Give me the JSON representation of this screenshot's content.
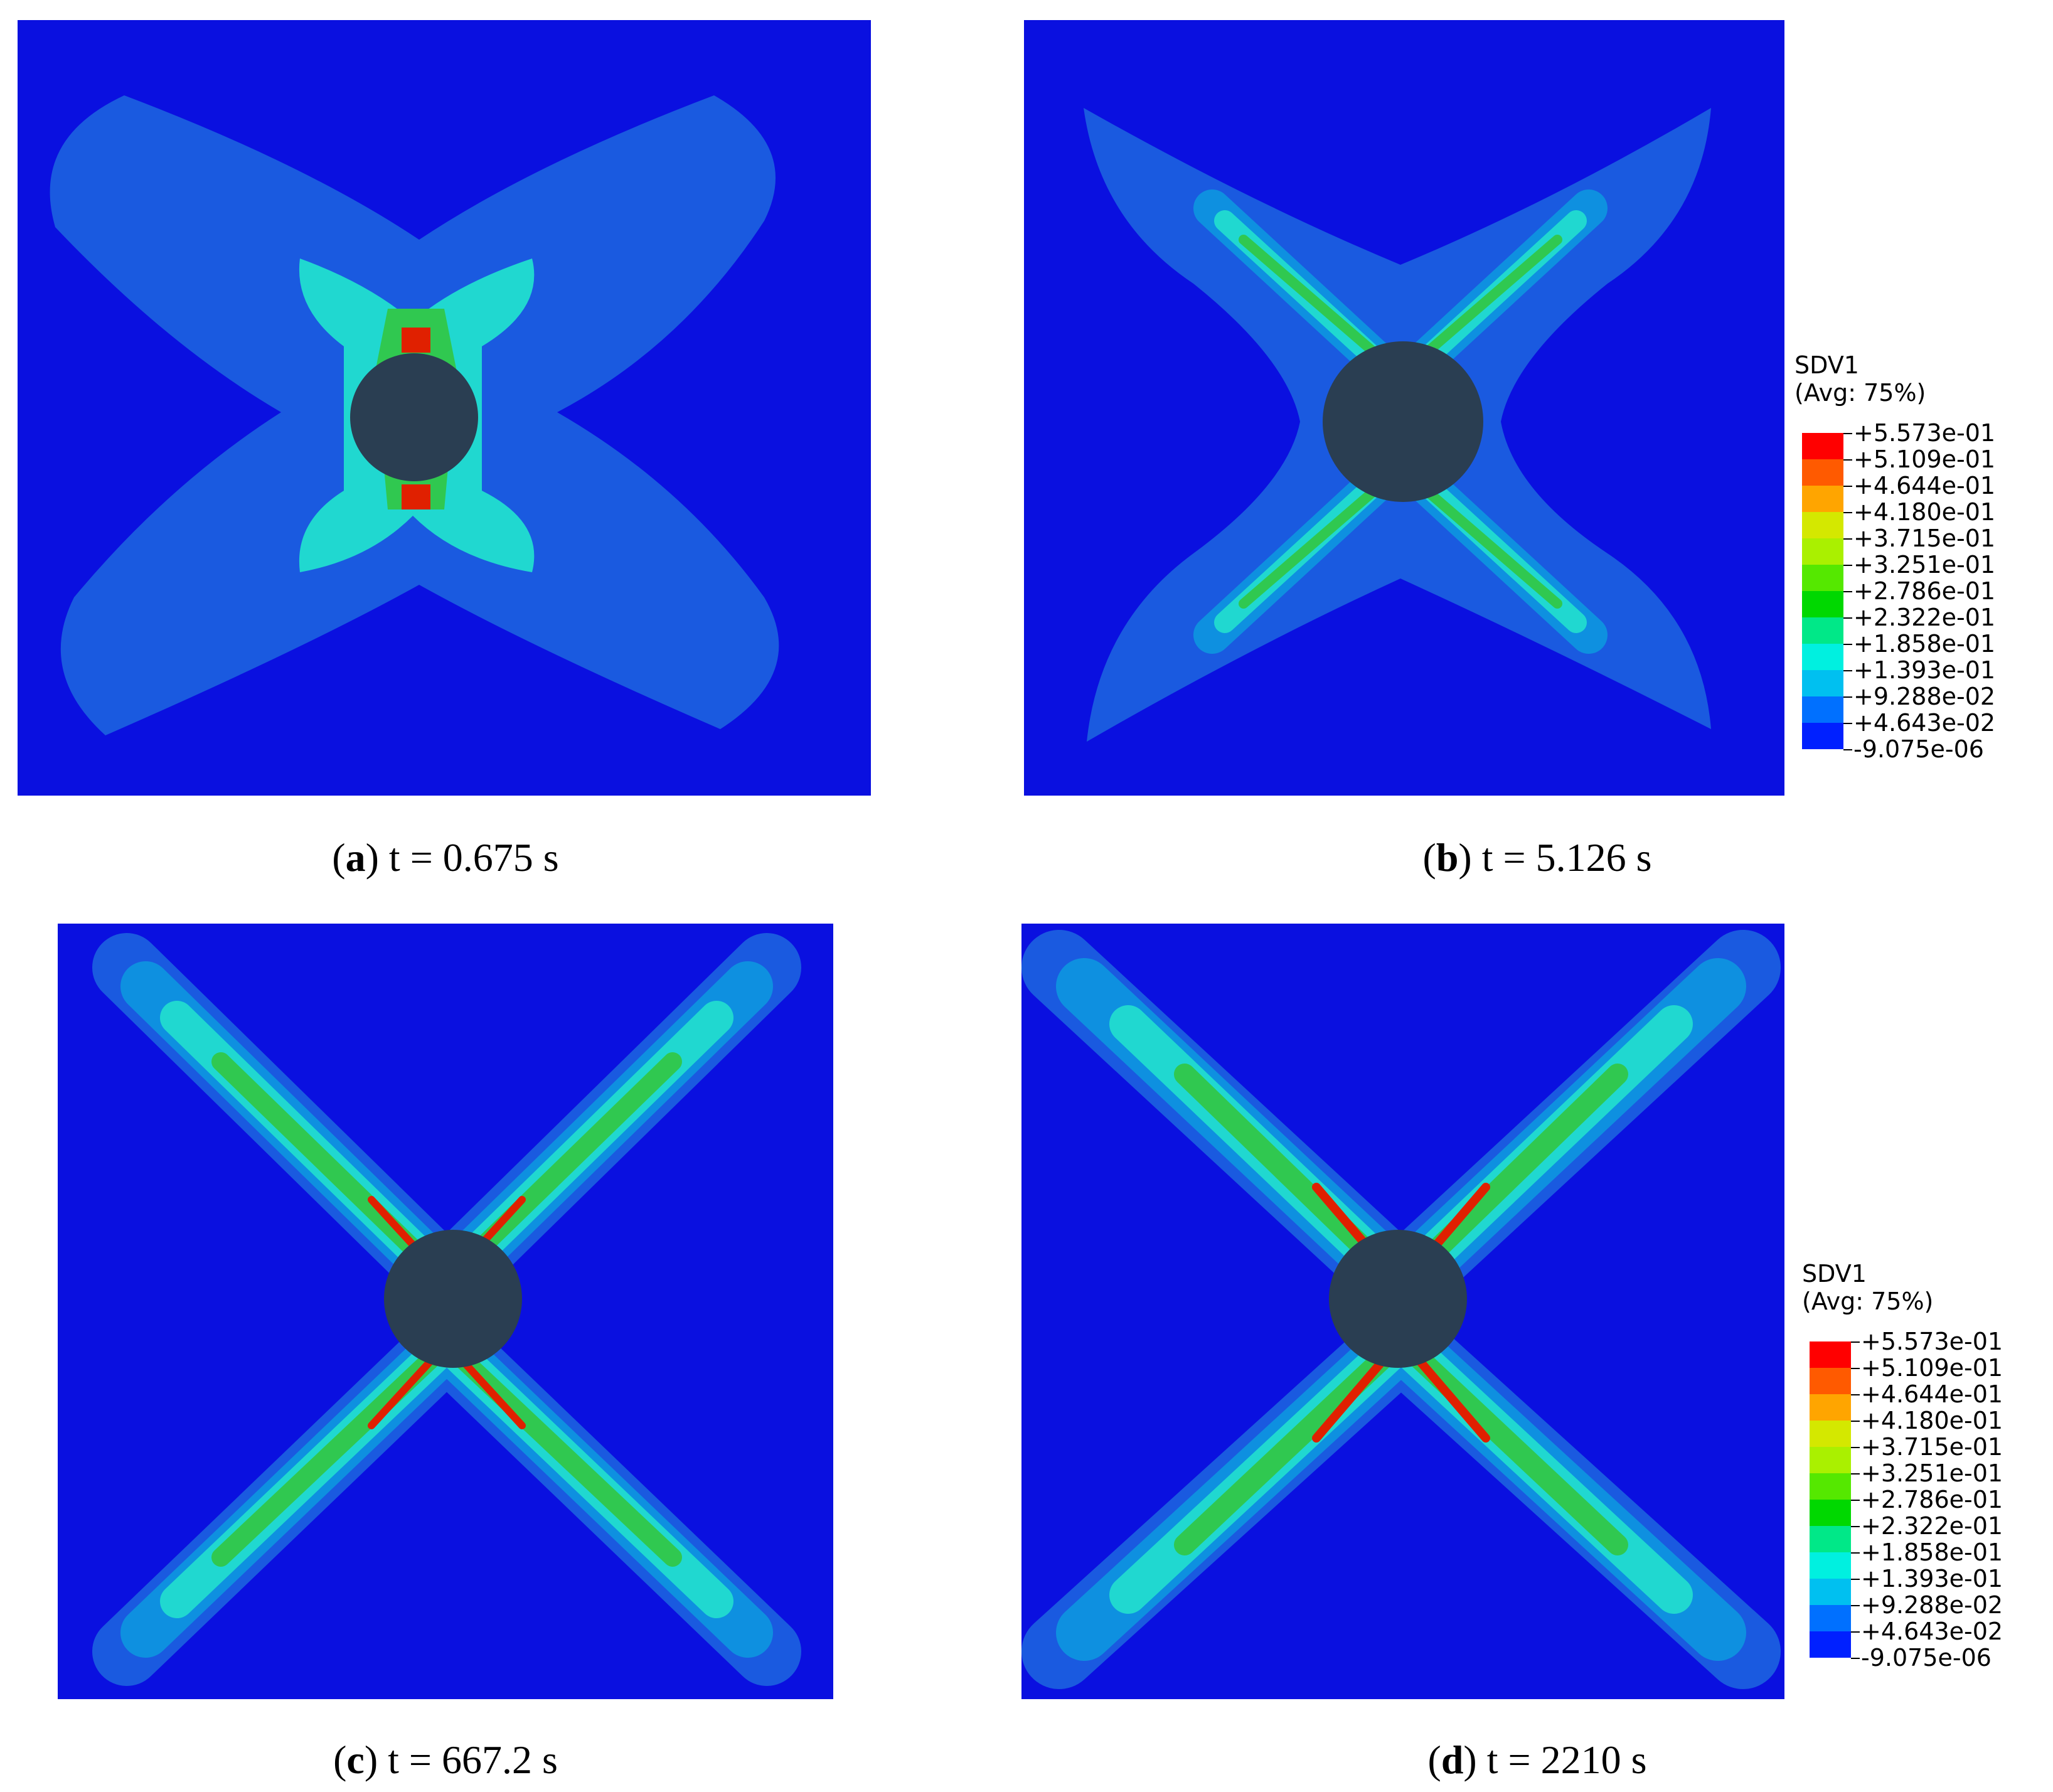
{
  "panels": [
    {
      "id": "a",
      "letter": "a",
      "time": "t = 0.675 s"
    },
    {
      "id": "b",
      "letter": "b",
      "time": "t = 5.126 s"
    },
    {
      "id": "c",
      "letter": "c",
      "time": "t = 667.2 s"
    },
    {
      "id": "d",
      "letter": "d",
      "time": "t = 2210 s"
    }
  ],
  "legend": {
    "title": "SDV1",
    "subtitle": "(Avg: 75%)",
    "labels": [
      "+5.573e-01",
      "+5.109e-01",
      "+4.644e-01",
      "+4.180e-01",
      "+3.715e-01",
      "+3.251e-01",
      "+2.786e-01",
      "+2.322e-01",
      "+1.858e-01",
      "+1.393e-01",
      "+9.288e-02",
      "+4.643e-02",
      "-9.075e-06"
    ],
    "colors": [
      "#ff0000",
      "#ff5a00",
      "#ffa500",
      "#d4e800",
      "#aaf000",
      "#55e800",
      "#00d800",
      "#00e888",
      "#00f0e0",
      "#00c0f0",
      "#0070ff",
      "#0020ff"
    ]
  },
  "colors": {
    "background": "#0a10e0",
    "zone_outer": "#1a5ae0",
    "zone_mid": "#0e90e0",
    "zone_cyan": "#20d8d0",
    "zone_green": "#30c850",
    "zone_red": "#e02000",
    "hole": "#2a3e52"
  }
}
